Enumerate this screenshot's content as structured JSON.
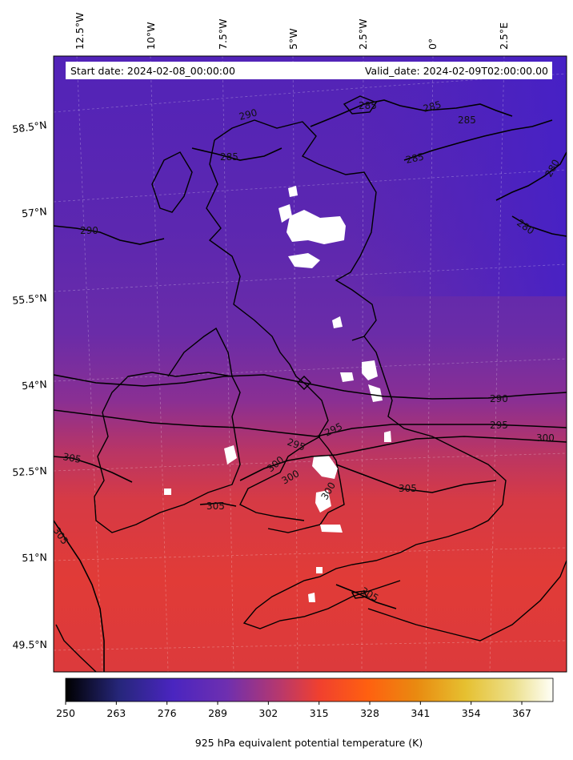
{
  "map": {
    "start_date": "Start date: 2024-02-08_00:00:00",
    "valid_date": "Valid_date: 2024-02-09T02:00:00.00",
    "lon_labels": [
      "12.5°W",
      "10°W",
      "7.5°W",
      "5°W",
      "2.5°W",
      "0°",
      "2.5°E"
    ],
    "lat_labels": [
      "58.5°N",
      "57°N",
      "55.5°N",
      "54°N",
      "52.5°N",
      "51°N",
      "49.5°N"
    ],
    "contour_labels": [
      "285",
      "285",
      "285",
      "285",
      "280",
      "280",
      "285",
      "290",
      "290",
      "290",
      "295",
      "300",
      "295",
      "295",
      "300",
      "300",
      "305",
      "305",
      "305",
      "305",
      "305",
      "300"
    ],
    "colors": {
      "cold": "#4a22c0",
      "mid": "#7a2ea6",
      "warm": "#d8383e",
      "hot": "#e33a35",
      "contour": "#000000"
    }
  },
  "colorbar": {
    "label": "925 hPa equivalent potential temperature (K)",
    "ticks": [
      "250",
      "263",
      "276",
      "289",
      "302",
      "315",
      "328",
      "341",
      "354",
      "367"
    ],
    "colormap": "CMRmap",
    "range": [
      250,
      375
    ]
  }
}
